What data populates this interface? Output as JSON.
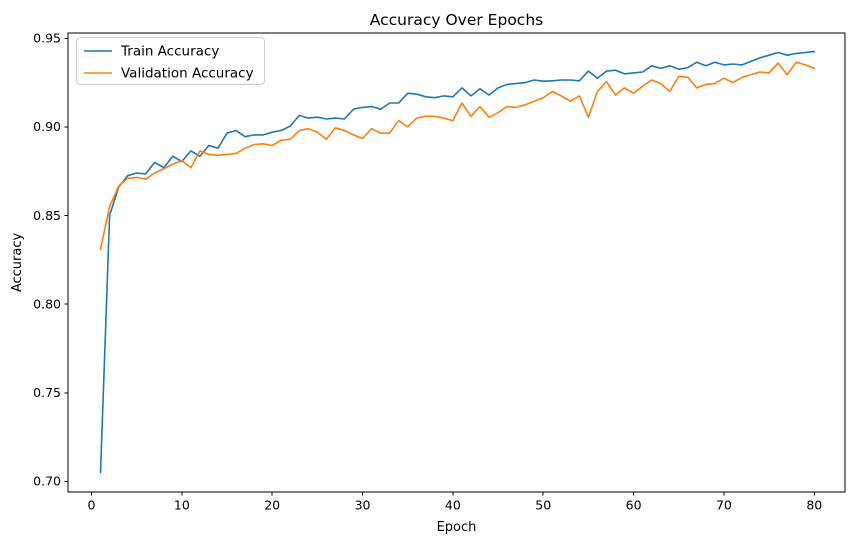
{
  "chart_data": {
    "type": "line",
    "title": "Accuracy Over Epochs",
    "xlabel": "Epoch",
    "ylabel": "Accuracy",
    "legend_position": "upper left",
    "grid": false,
    "background_color": "#ffffff",
    "xlim": [
      -2.6,
      83.4
    ],
    "ylim": [
      0.694,
      0.953
    ],
    "xticks": [
      0,
      10,
      20,
      30,
      40,
      50,
      60,
      70,
      80
    ],
    "yticks": [
      0.7,
      0.75,
      0.8,
      0.85,
      0.9,
      0.95
    ],
    "ytick_labels": [
      "0.70",
      "0.75",
      "0.80",
      "0.85",
      "0.90",
      "0.95"
    ],
    "x": [
      1,
      2,
      3,
      4,
      5,
      6,
      7,
      8,
      9,
      10,
      11,
      12,
      13,
      14,
      15,
      16,
      17,
      18,
      19,
      20,
      21,
      22,
      23,
      24,
      25,
      26,
      27,
      28,
      29,
      30,
      31,
      32,
      33,
      34,
      35,
      36,
      37,
      38,
      39,
      40,
      41,
      42,
      43,
      44,
      45,
      46,
      47,
      48,
      49,
      50,
      51,
      52,
      53,
      54,
      55,
      56,
      57,
      58,
      59,
      60,
      61,
      62,
      63,
      64,
      65,
      66,
      67,
      68,
      69,
      70,
      71,
      72,
      73,
      74,
      75,
      76,
      77,
      78,
      79,
      80
    ],
    "series": [
      {
        "name": "Train Accuracy",
        "color": "#1f77b4",
        "values": [
          0.705,
          0.85,
          0.866,
          0.8725,
          0.874,
          0.8735,
          0.88,
          0.877,
          0.8835,
          0.8805,
          0.8865,
          0.8835,
          0.8895,
          0.888,
          0.8965,
          0.898,
          0.8945,
          0.8955,
          0.8955,
          0.897,
          0.898,
          0.9005,
          0.9065,
          0.905,
          0.9055,
          0.9045,
          0.905,
          0.9045,
          0.91,
          0.911,
          0.9115,
          0.91,
          0.9135,
          0.9135,
          0.919,
          0.9185,
          0.917,
          0.9165,
          0.9175,
          0.917,
          0.922,
          0.9175,
          0.9215,
          0.918,
          0.922,
          0.924,
          0.9245,
          0.925,
          0.9265,
          0.9258,
          0.926,
          0.9265,
          0.9265,
          0.926,
          0.9315,
          0.9275,
          0.9315,
          0.932,
          0.93,
          0.9305,
          0.931,
          0.9345,
          0.933,
          0.9345,
          0.9325,
          0.9335,
          0.9365,
          0.9345,
          0.9365,
          0.935,
          0.9355,
          0.935,
          0.937,
          0.939,
          0.9405,
          0.942,
          0.9405,
          0.9415,
          0.942,
          0.9425
        ]
      },
      {
        "name": "Validation Accuracy",
        "color": "#ff7f0e",
        "values": [
          0.831,
          0.855,
          0.8665,
          0.871,
          0.8715,
          0.8705,
          0.874,
          0.8765,
          0.879,
          0.881,
          0.877,
          0.8865,
          0.8845,
          0.884,
          0.8845,
          0.885,
          0.888,
          0.89,
          0.8905,
          0.8895,
          0.8925,
          0.893,
          0.898,
          0.899,
          0.897,
          0.893,
          0.8995,
          0.898,
          0.8955,
          0.8935,
          0.899,
          0.8965,
          0.8965,
          0.9035,
          0.9,
          0.905,
          0.906,
          0.906,
          0.905,
          0.9035,
          0.9135,
          0.906,
          0.9115,
          0.9055,
          0.908,
          0.9115,
          0.911,
          0.9125,
          0.9145,
          0.9165,
          0.92,
          0.9175,
          0.9145,
          0.9175,
          0.9055,
          0.92,
          0.9255,
          0.918,
          0.922,
          0.919,
          0.923,
          0.9265,
          0.9245,
          0.92,
          0.9285,
          0.928,
          0.922,
          0.924,
          0.9245,
          0.9275,
          0.925,
          0.928,
          0.9295,
          0.931,
          0.9305,
          0.936,
          0.9295,
          0.9365,
          0.935,
          0.933
        ]
      }
    ]
  }
}
